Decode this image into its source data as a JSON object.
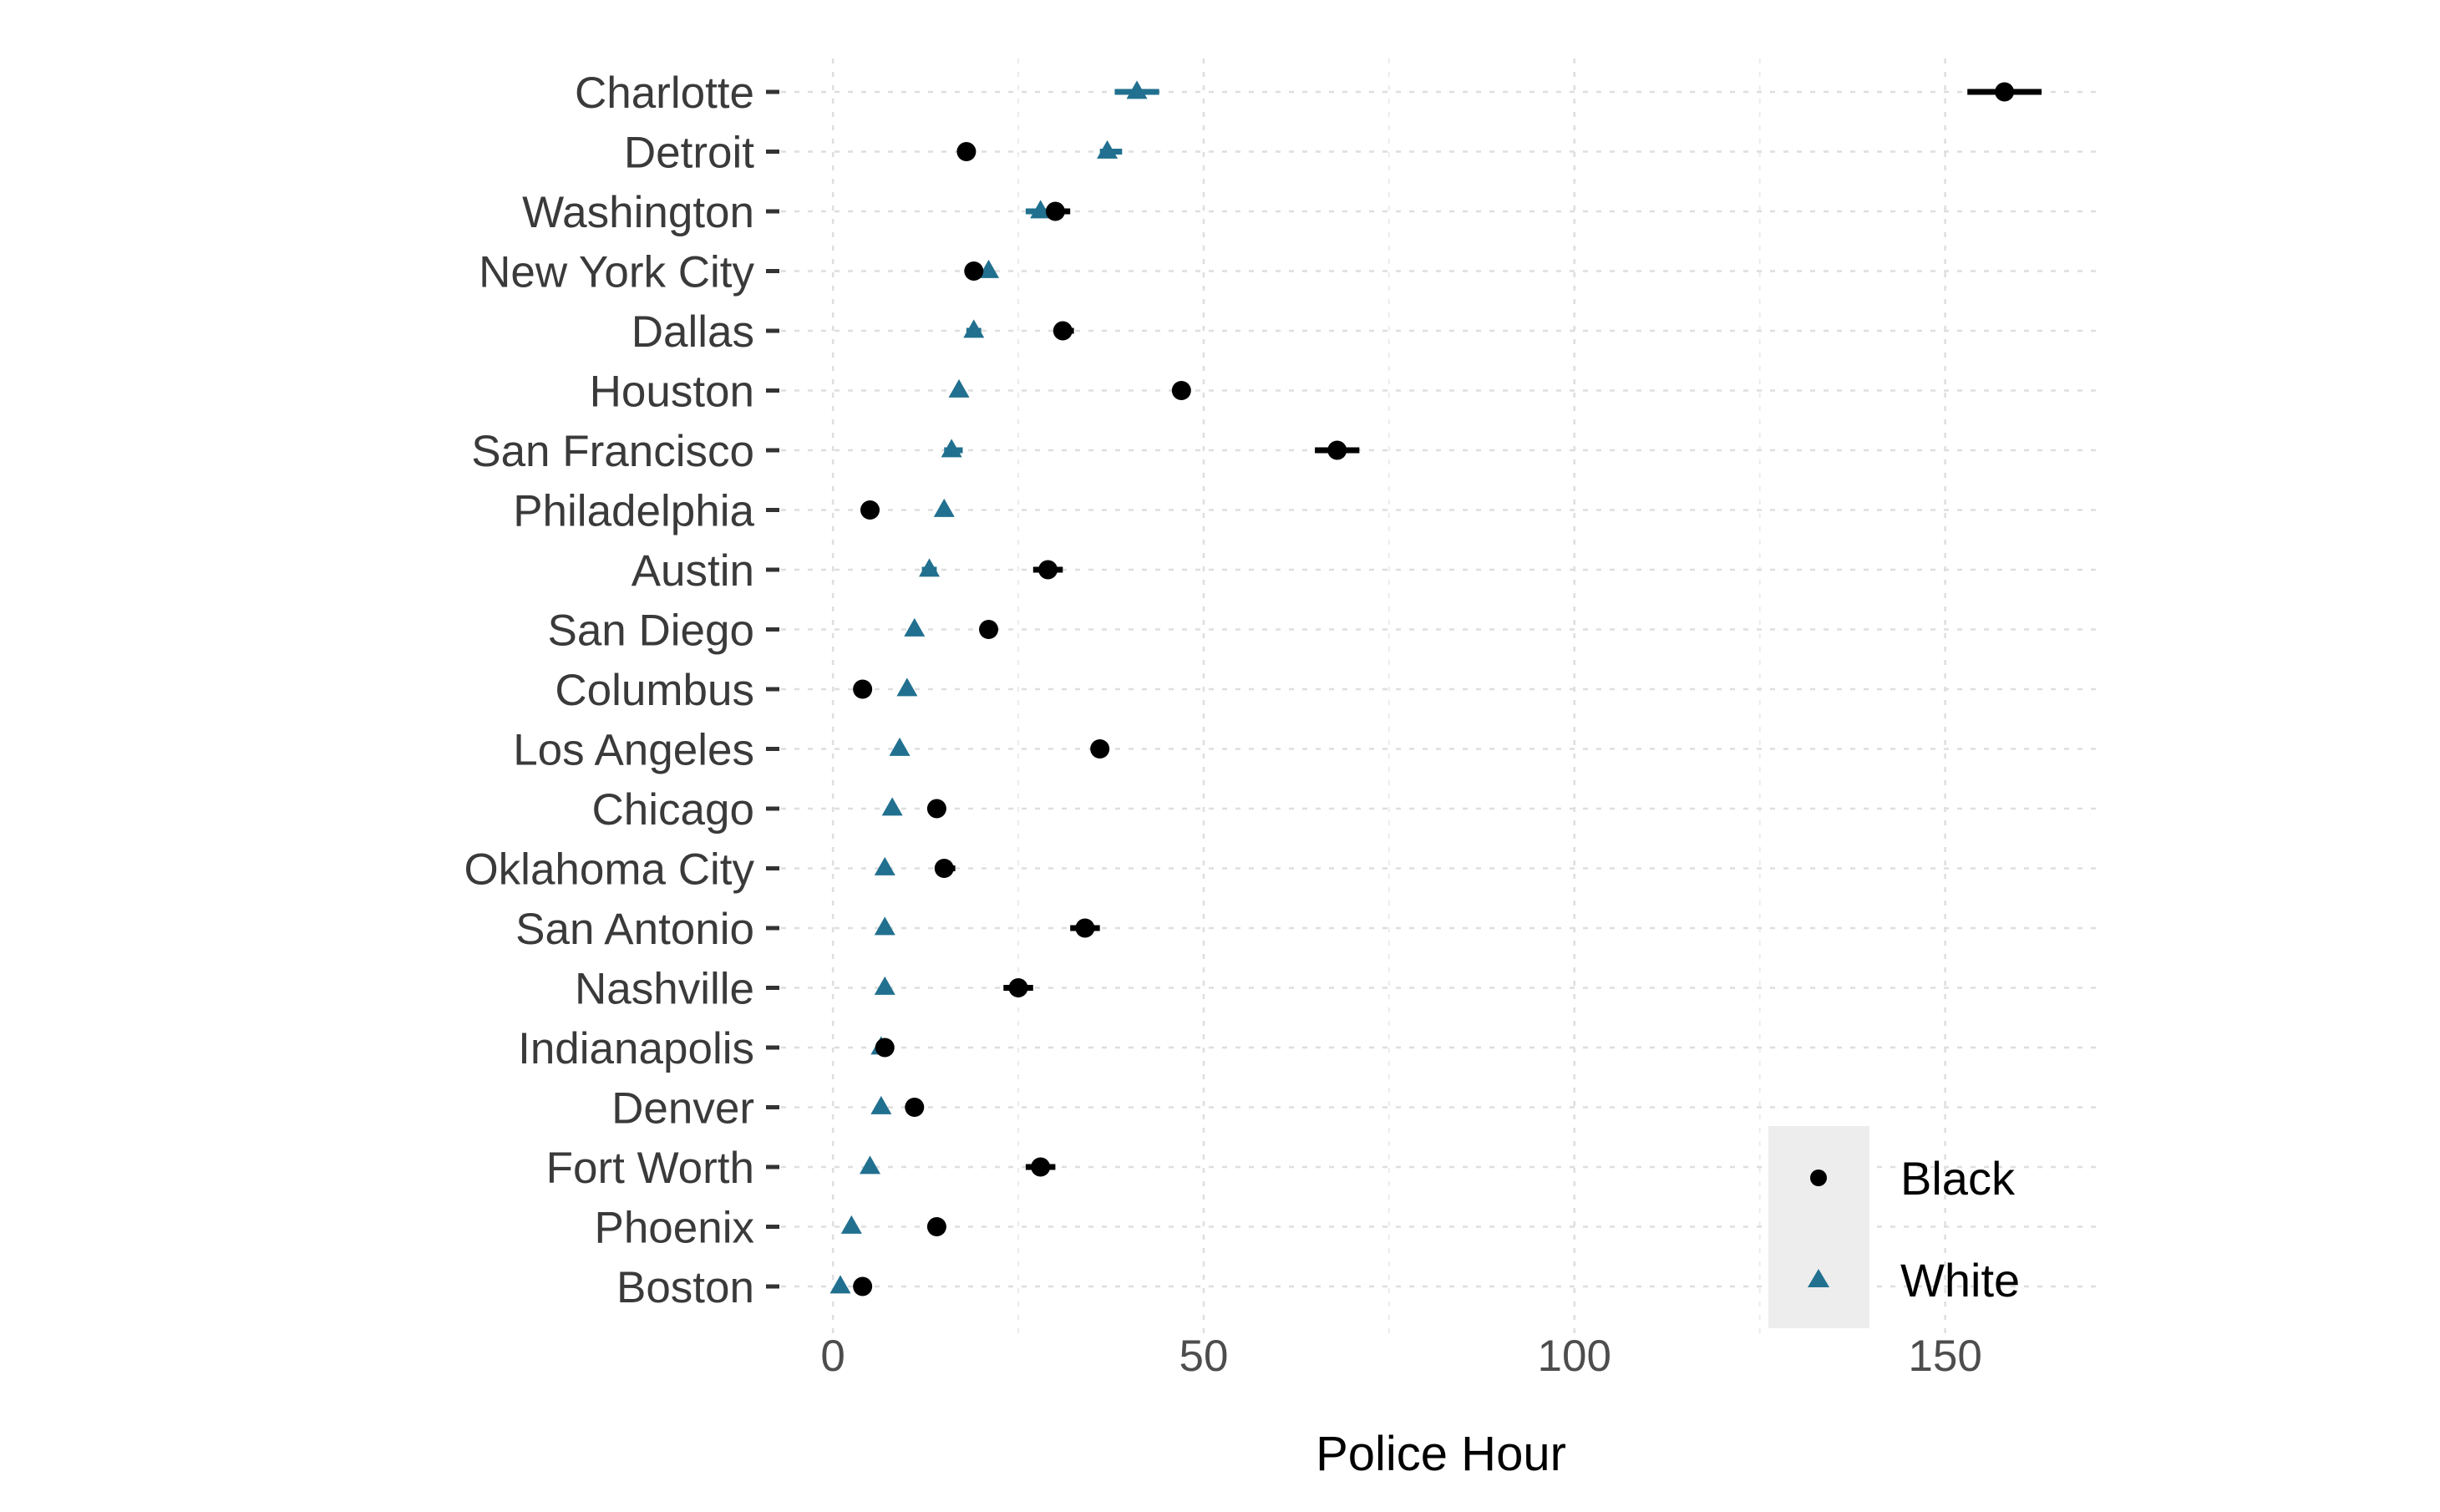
{
  "chart_data": {
    "type": "scatter",
    "title": "",
    "xlabel": "Police Hour",
    "ylabel": "",
    "xlim": [
      -7,
      171
    ],
    "x_ticks": [
      0,
      50,
      100,
      150
    ],
    "x_tick_labels": [
      "0",
      "50",
      "100",
      "150"
    ],
    "grid": true,
    "legend_position": "bottom-right",
    "categories": [
      "Charlotte",
      "Detroit",
      "Washington",
      "New York City",
      "Dallas",
      "Houston",
      "San Francisco",
      "Philadelphia",
      "Austin",
      "San Diego",
      "Columbus",
      "Los Angeles",
      "Chicago",
      "Oklahoma City",
      "San Antonio",
      "Nashville",
      "Indianapolis",
      "Denver",
      "Fort Worth",
      "Phoenix",
      "Boston"
    ],
    "series": [
      {
        "name": "Black",
        "marker": "circle",
        "color": "#000000",
        "values": [
          158,
          18,
          30,
          19,
          31,
          47,
          68,
          5,
          29,
          21,
          4,
          36,
          14,
          15,
          34,
          25,
          7,
          11,
          28,
          14,
          4
        ],
        "lower": [
          153,
          17.5,
          28,
          18.5,
          30,
          46,
          65,
          4.5,
          27,
          20.5,
          3.5,
          35.5,
          13.5,
          14,
          32,
          23,
          6.5,
          10.5,
          26,
          13.5,
          3.5
        ],
        "upper": [
          163,
          18.5,
          32,
          19.5,
          32.5,
          48,
          71,
          5.5,
          31,
          21.5,
          4.5,
          36.5,
          14.5,
          16.5,
          36,
          27,
          7.5,
          11.5,
          30,
          14.5,
          4.5
        ]
      },
      {
        "name": "White",
        "marker": "triangle",
        "color": "#21708f",
        "values": [
          41,
          37,
          28,
          21,
          19,
          17,
          16,
          15,
          13,
          11,
          10,
          9,
          8,
          7,
          7,
          7,
          6.5,
          6.5,
          5,
          2.5,
          1
        ],
        "lower": [
          38,
          36,
          26,
          20.5,
          18,
          16.5,
          15,
          14.5,
          12,
          10.5,
          9.5,
          8.5,
          7.5,
          6.5,
          6.5,
          6.5,
          6,
          6,
          4.5,
          2,
          0.5
        ],
        "upper": [
          44,
          39,
          30,
          21.5,
          20,
          17.5,
          17.5,
          15.5,
          14,
          11.5,
          10.5,
          9.5,
          8.5,
          7.5,
          7.5,
          7.5,
          7,
          7,
          5.5,
          3,
          1.5
        ]
      }
    ]
  },
  "legend": {
    "items": [
      {
        "label": "Black",
        "marker": "circle",
        "color": "#000000"
      },
      {
        "label": "White",
        "marker": "triangle",
        "color": "#21708f"
      }
    ],
    "background": "#ededed"
  }
}
